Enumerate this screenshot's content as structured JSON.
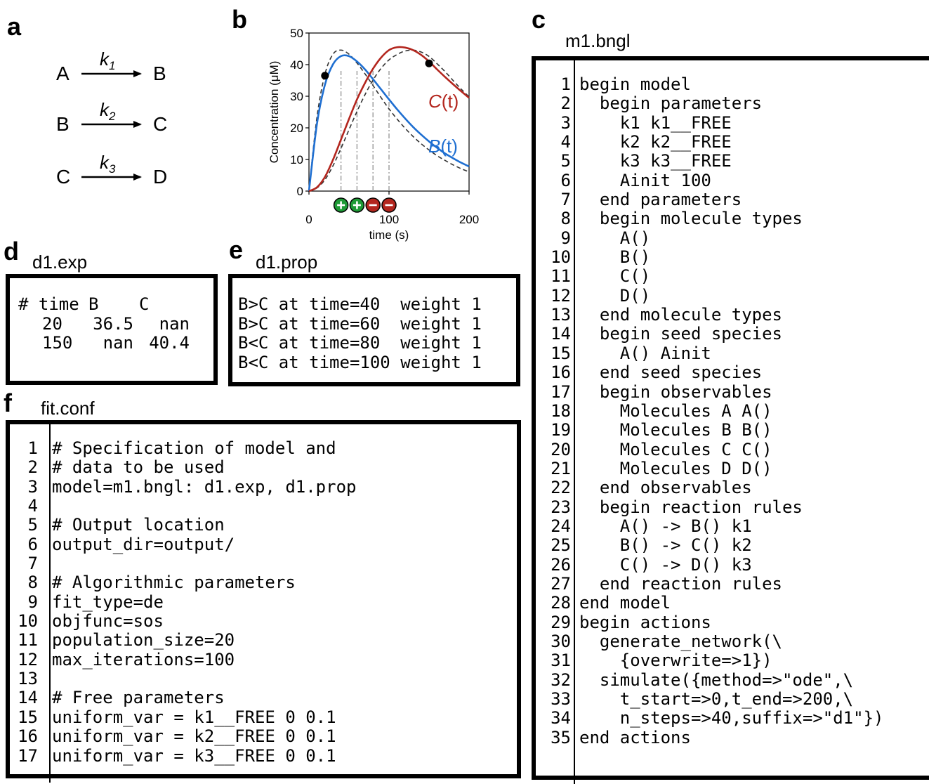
{
  "panels": {
    "a": "a",
    "b": "b",
    "c": "c",
    "d": "d",
    "e": "e",
    "f": "f"
  },
  "reactions": [
    {
      "from": "A",
      "to": "B",
      "rate": "k",
      "sub": "1"
    },
    {
      "from": "B",
      "to": "C",
      "rate": "k",
      "sub": "2"
    },
    {
      "from": "C",
      "to": "D",
      "rate": "k",
      "sub": "3"
    }
  ],
  "chart_data": {
    "type": "line",
    "xlabel": "time (s)",
    "ylabel": "Concentration (μM)",
    "xlim": [
      0,
      200
    ],
    "ylim": [
      0,
      50
    ],
    "xticks": [
      "0",
      "100",
      "200"
    ],
    "yticks": [
      "0",
      "10",
      "20",
      "30",
      "40",
      "50"
    ],
    "grid": false,
    "series": [
      {
        "name": "B(t)",
        "color": "#1f6fd1",
        "style": "solid",
        "x": [
          0,
          10,
          20,
          30,
          40,
          50,
          60,
          70,
          80,
          90,
          100,
          110,
          120,
          130,
          140,
          150,
          160,
          170,
          180,
          190,
          200
        ],
        "y": [
          0,
          21.3,
          33.7,
          40.1,
          42.7,
          42.7,
          41.0,
          38.5,
          35.4,
          32.2,
          29.0,
          25.9,
          23.0,
          20.3,
          17.9,
          15.7,
          13.7,
          11.9,
          10.4,
          9.0,
          7.8
        ]
      },
      {
        "name": "C(t)",
        "color": "#b3261e",
        "style": "solid",
        "x": [
          0,
          10,
          20,
          30,
          40,
          50,
          60,
          70,
          80,
          90,
          100,
          110,
          120,
          130,
          140,
          150,
          160,
          170,
          180,
          190,
          200
        ],
        "y": [
          0,
          1.2,
          4.5,
          9.9,
          16.3,
          22.8,
          29.0,
          34.2,
          38.7,
          42.2,
          44.6,
          45.5,
          45.4,
          44.6,
          43.1,
          41.0,
          38.5,
          36.1,
          33.8,
          31.6,
          29.5
        ]
      },
      {
        "name": "",
        "color": "#333333",
        "style": "dashed",
        "x": [
          0,
          10,
          20,
          30,
          40,
          50,
          60,
          70,
          80,
          90,
          100,
          110,
          120,
          130,
          140,
          150,
          160,
          170,
          180,
          190,
          200
        ],
        "y": [
          0,
          23.4,
          37.0,
          43.3,
          44.6,
          43.3,
          40.5,
          37.1,
          33.4,
          29.6,
          26.0,
          22.8,
          19.9,
          17.3,
          15.0,
          13.0,
          11.2,
          9.7,
          8.3,
          7.1,
          6.1
        ]
      },
      {
        "name": "",
        "color": "#333333",
        "style": "dashed",
        "x": [
          0,
          10,
          20,
          30,
          40,
          50,
          60,
          70,
          80,
          90,
          100,
          110,
          120,
          130,
          140,
          150,
          160,
          170,
          180,
          190,
          200
        ],
        "y": [
          0,
          1.0,
          3.6,
          8.0,
          13.5,
          19.4,
          25.2,
          30.5,
          35.1,
          38.8,
          41.5,
          43.2,
          44.3,
          44.6,
          44.0,
          42.6,
          40.3,
          37.8,
          35.0,
          32.3,
          29.8
        ]
      }
    ],
    "points": [
      {
        "x": 20,
        "y": 36.5
      },
      {
        "x": 150,
        "y": 40.4
      }
    ],
    "vlines": [
      40,
      60,
      80,
      100
    ],
    "markers": [
      {
        "x": 40,
        "symbol": "+",
        "color": "#1e9a36"
      },
      {
        "x": 60,
        "symbol": "+",
        "color": "#1e9a36"
      },
      {
        "x": 80,
        "symbol": "-",
        "color": "#b3261e"
      },
      {
        "x": 100,
        "symbol": "-",
        "color": "#b3261e"
      }
    ],
    "annotations": [
      {
        "label": "C",
        "suffix": "(t)",
        "color": "#b3261e"
      },
      {
        "label": "B",
        "suffix": "(t)",
        "color": "#1f6fd1"
      }
    ]
  },
  "bngl": {
    "filename": "m1.bngl",
    "lines": [
      "begin model",
      "  begin parameters",
      "    k1 k1__FREE",
      "    k2 k2__FREE",
      "    k3 k3__FREE",
      "    Ainit 100",
      "  end parameters",
      "  begin molecule types",
      "    A()",
      "    B()",
      "    C()",
      "    D()",
      "  end molecule types",
      "  begin seed species",
      "    A() Ainit",
      "  end seed species",
      "  begin observables",
      "    Molecules A A()",
      "    Molecules B B()",
      "    Molecules C C()",
      "    Molecules D D()",
      "  end observables",
      "  begin reaction rules",
      "    A() -> B() k1",
      "    B() -> C() k2",
      "    C() -> D() k3",
      "  end reaction rules",
      "end model",
      "begin actions",
      "  generate_network(\\",
      "    {overwrite=>1})",
      "  simulate({method=>\"ode\",\\",
      "    t_start=>0,t_end=>200,\\",
      "    n_steps=>40,suffix=>\"d1\"})",
      "end actions"
    ]
  },
  "exp": {
    "filename": "d1.exp",
    "header": [
      "# time",
      "B",
      "C"
    ],
    "rows": [
      [
        "20",
        "36.5",
        "nan"
      ],
      [
        "150",
        "nan",
        "40.4"
      ]
    ]
  },
  "prop": {
    "filename": "d1.prop",
    "lines": [
      "B>C at time=40  weight 1",
      "B>C at time=60  weight 1",
      "B<C at time=80  weight 1",
      "B<C at time=100 weight 1"
    ]
  },
  "conf": {
    "filename": "fit.conf",
    "lines": [
      "# Specification of model and",
      "# data to be used",
      "model=m1.bngl: d1.exp, d1.prop",
      "",
      "# Output location",
      "output_dir=output/",
      "",
      "# Algorithmic parameters",
      "fit_type=de",
      "objfunc=sos",
      "population_size=20",
      "max_iterations=100",
      "",
      "# Free parameters",
      "uniform_var = k1__FREE 0 0.1",
      "uniform_var = k2__FREE 0 0.1",
      "uniform_var = k3__FREE 0 0.1"
    ]
  }
}
